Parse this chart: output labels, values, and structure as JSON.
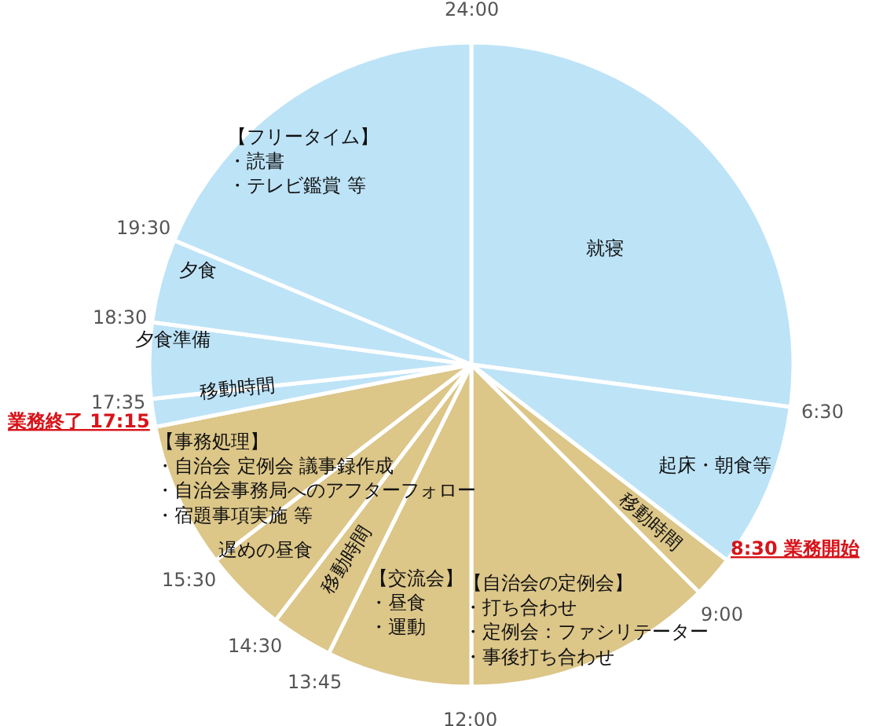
{
  "chart_data": {
    "type": "pie",
    "categories": [
      "就寝",
      "起床・朝食等",
      "移動時間",
      "【自治会の定例会】・打ち合わせ・定例会：ファシリテーター・事後打ち合わせ",
      "【交流会】・昼食・運動",
      "移動時間",
      "遅めの昼食",
      "【事務処理】・自治会 定例会 議事録作成・自治会事務局へのアフターフォロー・宿題事項実施 等",
      "移動時間",
      "夕食準備",
      "夕食",
      "【フリータイム】・読書・テレビ鑑賞 等"
    ],
    "values": [
      27.1,
      8.3,
      2.1,
      12.5,
      7.3,
      3.1,
      4.2,
      7.3,
      1.4,
      3.8,
      4.2,
      18.7
    ],
    "colors": [
      "#bde3f7",
      "#bde3f7",
      "#dcc688",
      "#dcc688",
      "#dcc688",
      "#dcc688",
      "#dcc688",
      "#dcc688",
      "#bde3f7",
      "#bde3f7",
      "#bde3f7",
      "#bde3f7"
    ],
    "annotations": [
      "24:00",
      "6:30",
      "9:00",
      "12:00",
      "13:45",
      "14:30",
      "15:30",
      "17:35",
      "18:30",
      "19:30",
      "業務終了 17:15",
      "8:30 業務開始"
    ]
  }
}
